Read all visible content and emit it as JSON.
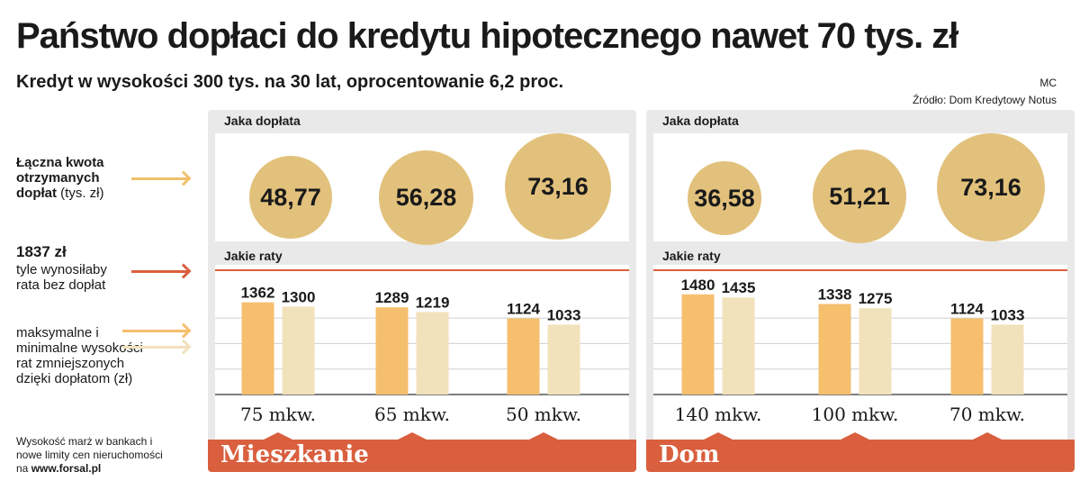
{
  "header": {
    "title": "Państwo dopłaci do kredytu hipotecznego nawet 70 tys. zł",
    "subtitle": "Kredyt w wysokości 300 tys. na 30 lat, oprocentowanie 6,2 proc.",
    "author": "MC",
    "source": "Źródło: Dom Kredytowy Notus"
  },
  "legend": {
    "total_bold": "Łączna kwota otrzymanych dopłat",
    "total_unit": "(tys. zł)",
    "rate_value": "1837 zł",
    "rate_text": "tyle wynosiłaby rata bez dopłat",
    "range_text": "maksymalne i minimalne wysokości rat zmniejszonych dzięki dopłatom (zł)",
    "footnote": "Wysokość marż w bankach i nowe limity cen nieruchomości na",
    "footnote_link": "www.forsal.pl"
  },
  "colors": {
    "bubble": "#e2c17c",
    "bar_max": "#f5bf6e",
    "bar_min": "#f2e2bb",
    "reference_line": "#d95f3e",
    "band": "#d95f3e"
  },
  "panels": [
    {
      "name": "Mieszkanie",
      "section1": "Jaka dopłata",
      "section2": "Jakie raty",
      "bubbles": [
        "48,77",
        "56,28",
        "73,16"
      ],
      "categories": [
        "75 mkw.",
        "65 mkw.",
        "50 mkw."
      ]
    },
    {
      "name": "Dom",
      "section1": "Jaka dopłata",
      "section2": "Jakie raty",
      "bubbles": [
        "36,58",
        "51,21",
        "73,16"
      ],
      "categories": [
        "140 mkw.",
        "100 mkw.",
        "70 mkw."
      ]
    }
  ],
  "chart_data": [
    {
      "type": "bar",
      "title": "Mieszkanie",
      "categories": [
        "75 mkw.",
        "65 mkw.",
        "50 mkw."
      ],
      "series": [
        {
          "values": [
            1362,
            1289,
            1124
          ]
        },
        {
          "values": [
            1300,
            1219,
            1033
          ]
        }
      ],
      "reference_line": 1837,
      "subsidy_total": [
        48.77,
        56.28,
        73.16
      ],
      "ylim": [
        0,
        1837
      ]
    },
    {
      "type": "bar",
      "title": "Dom",
      "categories": [
        "140 mkw.",
        "100 mkw.",
        "70 mkw."
      ],
      "series": [
        {
          "values": [
            1480,
            1338,
            1124
          ]
        },
        {
          "values": [
            1435,
            1275,
            1033
          ]
        }
      ],
      "reference_line": 1837,
      "subsidy_total": [
        36.58,
        51.21,
        73.16
      ],
      "ylim": [
        0,
        1837
      ]
    }
  ]
}
